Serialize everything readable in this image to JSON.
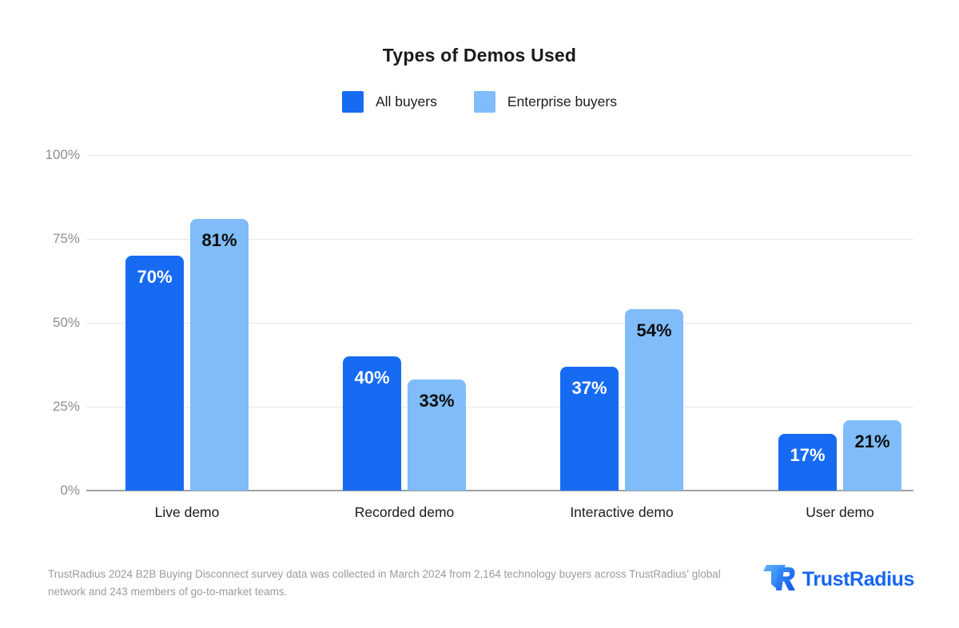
{
  "title": "Types of Demos Used",
  "chart_data": {
    "type": "bar",
    "title": "Types of Demos Used",
    "categories": [
      "Live demo",
      "Recorded demo",
      "Interactive demo",
      "User demo"
    ],
    "series": [
      {
        "name": "All buyers",
        "color": "#176bf2",
        "label_color": "#ffffff",
        "values": [
          70,
          40,
          37,
          17
        ]
      },
      {
        "name": "Enterprise buyers",
        "color": "#7fbcf9",
        "label_color": "#0d0d0d",
        "values": [
          81,
          33,
          54,
          21
        ]
      }
    ],
    "value_suffix": "%",
    "xlabel": "",
    "ylabel": "",
    "ylim": [
      0,
      100
    ],
    "yticks": [
      {
        "label": "100%",
        "value": 100
      },
      {
        "label": "75%",
        "value": 75
      },
      {
        "label": "50%",
        "value": 50
      },
      {
        "label": "25%",
        "value": 25
      },
      {
        "label": "0%",
        "value": 0
      }
    ],
    "grid": true,
    "legend_position": "top-center"
  },
  "footer": {
    "lines": [
      "TrustRadius 2024 B2B Buying Disconnect survey data was collected in March 2024 from 2,164 technology buyers across TrustRadius' global",
      "network and 243 members of go-to-market teams."
    ]
  },
  "brand": {
    "wordmark": "TrustRadius",
    "logo_colors": {
      "light": "#55acf9",
      "dark": "#1560ef",
      "text": "#1666f1"
    }
  }
}
